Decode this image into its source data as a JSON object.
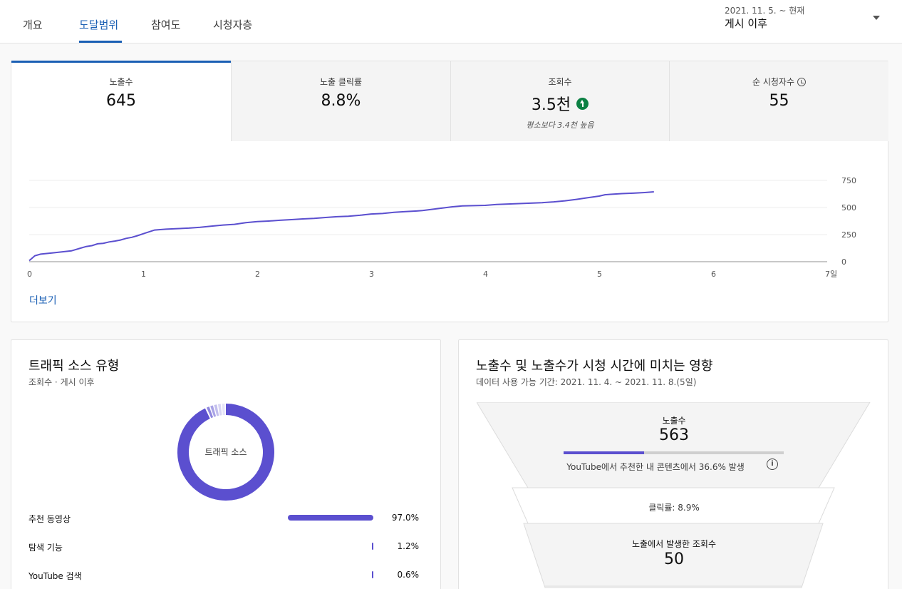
{
  "tabs": [
    {
      "label": "개요",
      "active": false
    },
    {
      "label": "도달범위",
      "active": true
    },
    {
      "label": "참여도",
      "active": false
    },
    {
      "label": "시청자층",
      "active": false
    }
  ],
  "date_filter": {
    "range": "2021. 11. 5. ~ 현재",
    "label": "게시 이후",
    "icon": "dropdown-arrow"
  },
  "metrics": [
    {
      "label": "노출수",
      "value": "645",
      "active": true
    },
    {
      "label": "노출 클릭률",
      "value": "8.8%"
    },
    {
      "label": "조회수",
      "value": "3.5천",
      "badge_icon": "arrow-up-icon",
      "note": "평소보다 3.4천 높음"
    },
    {
      "label": "순 시청자수",
      "value": "55",
      "icon": "clock-icon"
    }
  ],
  "more_link": "더보기",
  "chart_data": {
    "type": "line",
    "x_unit": "days",
    "x": [
      0,
      0.05,
      0.1,
      0.2,
      0.3,
      0.37,
      0.45,
      0.5,
      0.55,
      0.6,
      0.65,
      0.7,
      0.75,
      0.8,
      0.85,
      0.9,
      0.95,
      1.0,
      1.05,
      1.1,
      1.2,
      1.3,
      1.4,
      1.5,
      1.6,
      1.7,
      1.8,
      1.9,
      2.0,
      2.1,
      2.2,
      2.3,
      2.4,
      2.5,
      2.6,
      2.7,
      2.8,
      2.9,
      3.0,
      3.1,
      3.2,
      3.3,
      3.4,
      3.45,
      3.5,
      3.6,
      3.7,
      3.8,
      4.0,
      4.1,
      4.2,
      4.3,
      4.4,
      4.5,
      4.6,
      4.7,
      4.8,
      4.9,
      5.0,
      5.05,
      5.1,
      5.2,
      5.3,
      5.4,
      5.48
    ],
    "y": [
      10,
      55,
      70,
      80,
      92,
      100,
      125,
      140,
      148,
      165,
      170,
      182,
      190,
      200,
      215,
      225,
      240,
      258,
      275,
      292,
      300,
      305,
      310,
      318,
      328,
      338,
      345,
      360,
      370,
      375,
      382,
      388,
      395,
      400,
      408,
      415,
      420,
      428,
      440,
      445,
      455,
      462,
      468,
      472,
      478,
      492,
      505,
      515,
      520,
      528,
      532,
      536,
      540,
      545,
      552,
      562,
      575,
      590,
      605,
      618,
      622,
      628,
      632,
      638,
      645
    ],
    "xticks": [
      "0",
      "1",
      "2",
      "3",
      "4",
      "5",
      "6",
      "7일"
    ],
    "xlim": [
      0,
      7
    ],
    "yticks": [
      "0",
      "250",
      "500",
      "750"
    ],
    "ylim": [
      0,
      750
    ],
    "grid": true,
    "color": "#5b4fcf"
  },
  "traffic": {
    "title": "트래픽 소스 유형",
    "subtitle": "조회수 · 게시 이후",
    "donut_label": "트래픽 소스",
    "sources": [
      {
        "name": "추천 동영상",
        "pct": "97.0%",
        "value": 0.97
      },
      {
        "name": "탐색 기능",
        "pct": "1.2%",
        "value": 0.012
      },
      {
        "name": "YouTube 검색",
        "pct": "0.6%",
        "value": 0.006
      }
    ],
    "donut_color": "#5b4fcf"
  },
  "funnel": {
    "title": "노출수 및 노출수가 시청 시간에 미치는 영향",
    "subtitle": "데이터 사용 가능 기간: 2021. 11. 4. ~ 2021. 11. 8.(5일)",
    "impressions_label": "노출수",
    "impressions_value": "563",
    "progress": 0.366,
    "source_note": "YouTube에서 추천한 내 콘텐츠에서 36.6% 발생",
    "ctr": "클릭률: 8.9%",
    "views_label": "노출에서 발생한 조회수",
    "views_value": "50"
  }
}
